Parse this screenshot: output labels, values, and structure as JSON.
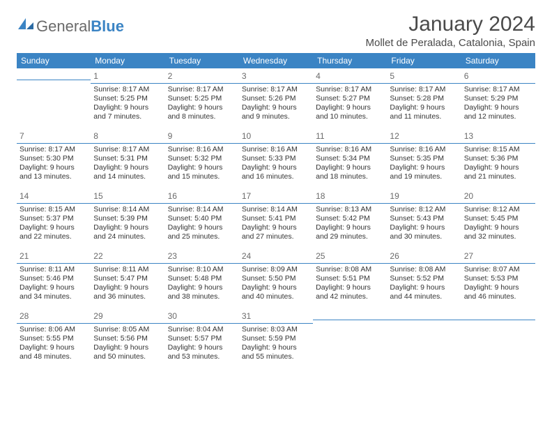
{
  "brand": {
    "name_gray": "General",
    "name_blue": "Blue"
  },
  "title": "January 2024",
  "location": "Mollet de Peralada, Catalonia, Spain",
  "colors": {
    "header_bg": "#3b84c4",
    "header_text": "#ffffff",
    "rule": "#3b84c4",
    "text": "#333333",
    "muted": "#6a6a6a",
    "background": "#ffffff"
  },
  "day_headers": [
    "Sunday",
    "Monday",
    "Tuesday",
    "Wednesday",
    "Thursday",
    "Friday",
    "Saturday"
  ],
  "weeks": [
    [
      {
        "blank": true
      },
      {
        "n": "1",
        "sunrise": "Sunrise: 8:17 AM",
        "sunset": "Sunset: 5:25 PM",
        "dl1": "Daylight: 9 hours",
        "dl2": "and 7 minutes."
      },
      {
        "n": "2",
        "sunrise": "Sunrise: 8:17 AM",
        "sunset": "Sunset: 5:25 PM",
        "dl1": "Daylight: 9 hours",
        "dl2": "and 8 minutes."
      },
      {
        "n": "3",
        "sunrise": "Sunrise: 8:17 AM",
        "sunset": "Sunset: 5:26 PM",
        "dl1": "Daylight: 9 hours",
        "dl2": "and 9 minutes."
      },
      {
        "n": "4",
        "sunrise": "Sunrise: 8:17 AM",
        "sunset": "Sunset: 5:27 PM",
        "dl1": "Daylight: 9 hours",
        "dl2": "and 10 minutes."
      },
      {
        "n": "5",
        "sunrise": "Sunrise: 8:17 AM",
        "sunset": "Sunset: 5:28 PM",
        "dl1": "Daylight: 9 hours",
        "dl2": "and 11 minutes."
      },
      {
        "n": "6",
        "sunrise": "Sunrise: 8:17 AM",
        "sunset": "Sunset: 5:29 PM",
        "dl1": "Daylight: 9 hours",
        "dl2": "and 12 minutes."
      }
    ],
    [
      {
        "n": "7",
        "sunrise": "Sunrise: 8:17 AM",
        "sunset": "Sunset: 5:30 PM",
        "dl1": "Daylight: 9 hours",
        "dl2": "and 13 minutes."
      },
      {
        "n": "8",
        "sunrise": "Sunrise: 8:17 AM",
        "sunset": "Sunset: 5:31 PM",
        "dl1": "Daylight: 9 hours",
        "dl2": "and 14 minutes."
      },
      {
        "n": "9",
        "sunrise": "Sunrise: 8:16 AM",
        "sunset": "Sunset: 5:32 PM",
        "dl1": "Daylight: 9 hours",
        "dl2": "and 15 minutes."
      },
      {
        "n": "10",
        "sunrise": "Sunrise: 8:16 AM",
        "sunset": "Sunset: 5:33 PM",
        "dl1": "Daylight: 9 hours",
        "dl2": "and 16 minutes."
      },
      {
        "n": "11",
        "sunrise": "Sunrise: 8:16 AM",
        "sunset": "Sunset: 5:34 PM",
        "dl1": "Daylight: 9 hours",
        "dl2": "and 18 minutes."
      },
      {
        "n": "12",
        "sunrise": "Sunrise: 8:16 AM",
        "sunset": "Sunset: 5:35 PM",
        "dl1": "Daylight: 9 hours",
        "dl2": "and 19 minutes."
      },
      {
        "n": "13",
        "sunrise": "Sunrise: 8:15 AM",
        "sunset": "Sunset: 5:36 PM",
        "dl1": "Daylight: 9 hours",
        "dl2": "and 21 minutes."
      }
    ],
    [
      {
        "n": "14",
        "sunrise": "Sunrise: 8:15 AM",
        "sunset": "Sunset: 5:37 PM",
        "dl1": "Daylight: 9 hours",
        "dl2": "and 22 minutes."
      },
      {
        "n": "15",
        "sunrise": "Sunrise: 8:14 AM",
        "sunset": "Sunset: 5:39 PM",
        "dl1": "Daylight: 9 hours",
        "dl2": "and 24 minutes."
      },
      {
        "n": "16",
        "sunrise": "Sunrise: 8:14 AM",
        "sunset": "Sunset: 5:40 PM",
        "dl1": "Daylight: 9 hours",
        "dl2": "and 25 minutes."
      },
      {
        "n": "17",
        "sunrise": "Sunrise: 8:14 AM",
        "sunset": "Sunset: 5:41 PM",
        "dl1": "Daylight: 9 hours",
        "dl2": "and 27 minutes."
      },
      {
        "n": "18",
        "sunrise": "Sunrise: 8:13 AM",
        "sunset": "Sunset: 5:42 PM",
        "dl1": "Daylight: 9 hours",
        "dl2": "and 29 minutes."
      },
      {
        "n": "19",
        "sunrise": "Sunrise: 8:12 AM",
        "sunset": "Sunset: 5:43 PM",
        "dl1": "Daylight: 9 hours",
        "dl2": "and 30 minutes."
      },
      {
        "n": "20",
        "sunrise": "Sunrise: 8:12 AM",
        "sunset": "Sunset: 5:45 PM",
        "dl1": "Daylight: 9 hours",
        "dl2": "and 32 minutes."
      }
    ],
    [
      {
        "n": "21",
        "sunrise": "Sunrise: 8:11 AM",
        "sunset": "Sunset: 5:46 PM",
        "dl1": "Daylight: 9 hours",
        "dl2": "and 34 minutes."
      },
      {
        "n": "22",
        "sunrise": "Sunrise: 8:11 AM",
        "sunset": "Sunset: 5:47 PM",
        "dl1": "Daylight: 9 hours",
        "dl2": "and 36 minutes."
      },
      {
        "n": "23",
        "sunrise": "Sunrise: 8:10 AM",
        "sunset": "Sunset: 5:48 PM",
        "dl1": "Daylight: 9 hours",
        "dl2": "and 38 minutes."
      },
      {
        "n": "24",
        "sunrise": "Sunrise: 8:09 AM",
        "sunset": "Sunset: 5:50 PM",
        "dl1": "Daylight: 9 hours",
        "dl2": "and 40 minutes."
      },
      {
        "n": "25",
        "sunrise": "Sunrise: 8:08 AM",
        "sunset": "Sunset: 5:51 PM",
        "dl1": "Daylight: 9 hours",
        "dl2": "and 42 minutes."
      },
      {
        "n": "26",
        "sunrise": "Sunrise: 8:08 AM",
        "sunset": "Sunset: 5:52 PM",
        "dl1": "Daylight: 9 hours",
        "dl2": "and 44 minutes."
      },
      {
        "n": "27",
        "sunrise": "Sunrise: 8:07 AM",
        "sunset": "Sunset: 5:53 PM",
        "dl1": "Daylight: 9 hours",
        "dl2": "and 46 minutes."
      }
    ],
    [
      {
        "n": "28",
        "sunrise": "Sunrise: 8:06 AM",
        "sunset": "Sunset: 5:55 PM",
        "dl1": "Daylight: 9 hours",
        "dl2": "and 48 minutes."
      },
      {
        "n": "29",
        "sunrise": "Sunrise: 8:05 AM",
        "sunset": "Sunset: 5:56 PM",
        "dl1": "Daylight: 9 hours",
        "dl2": "and 50 minutes."
      },
      {
        "n": "30",
        "sunrise": "Sunrise: 8:04 AM",
        "sunset": "Sunset: 5:57 PM",
        "dl1": "Daylight: 9 hours",
        "dl2": "and 53 minutes."
      },
      {
        "n": "31",
        "sunrise": "Sunrise: 8:03 AM",
        "sunset": "Sunset: 5:59 PM",
        "dl1": "Daylight: 9 hours",
        "dl2": "and 55 minutes."
      },
      {
        "blank": true
      },
      {
        "blank": true
      },
      {
        "blank": true
      }
    ]
  ]
}
